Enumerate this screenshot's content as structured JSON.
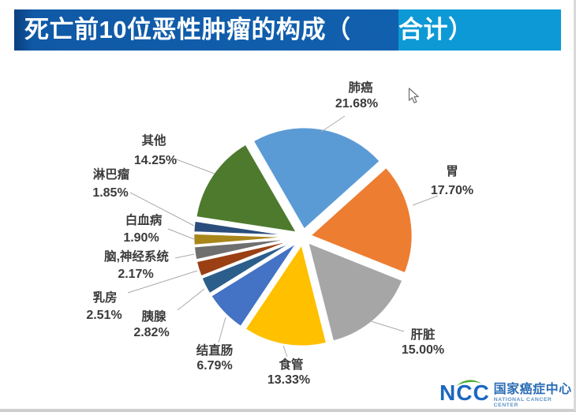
{
  "header": {
    "title_main": "死亡前10位恶性肿瘤的构成（",
    "title_accent": "合计）",
    "title_full": "死亡前10位恶性肿瘤的构成（合计）"
  },
  "chart_data": {
    "type": "pie",
    "title": "死亡前10位恶性肿瘤的构成（合计）",
    "unit": "%",
    "direction": "clockwise",
    "start_angle_deg": -30,
    "exploded": true,
    "legend": "none",
    "label_format": "category name + percentage",
    "slices": [
      {
        "label": "肺癌",
        "value": 21.68,
        "display": "21.68%",
        "color": "#5B9BD5"
      },
      {
        "label": "胃",
        "value": 17.7,
        "display": "17.70%",
        "color": "#ED7D31"
      },
      {
        "label": "肝脏",
        "value": 15.0,
        "display": "15.00%",
        "color": "#A6A6A6"
      },
      {
        "label": "食管",
        "value": 13.33,
        "display": "13.33%",
        "color": "#FFC000"
      },
      {
        "label": "结直肠",
        "value": 6.79,
        "display": "6.79%",
        "color": "#4472C4"
      },
      {
        "label": "胰腺",
        "value": 2.82,
        "display": "2.82%",
        "color": "#2C5E8C"
      },
      {
        "label": "乳房",
        "value": 2.51,
        "display": "2.51%",
        "color": "#9A4014"
      },
      {
        "label": "脑,神经系统",
        "value": 2.17,
        "display": "2.17%",
        "color": "#6F6F6F"
      },
      {
        "label": "白血病",
        "value": 1.9,
        "display": "1.90%",
        "color": "#A8861A"
      },
      {
        "label": "淋巴瘤",
        "value": 1.85,
        "display": "1.85%",
        "color": "#2A4D7C"
      },
      {
        "label": "其他",
        "value": 14.25,
        "display": "14.25%",
        "color": "#4E7A2E"
      }
    ],
    "label_text_color_default": "#3B3B3B",
    "label_text_color_lung": "#1F4077"
  },
  "logo": {
    "abbr": "NCC",
    "name_zh": "国家癌症中心",
    "name_en": "NATIONAL CANCER CENTER",
    "brand_blue": "#1B67C0",
    "brand_green": "#4CAE32"
  }
}
